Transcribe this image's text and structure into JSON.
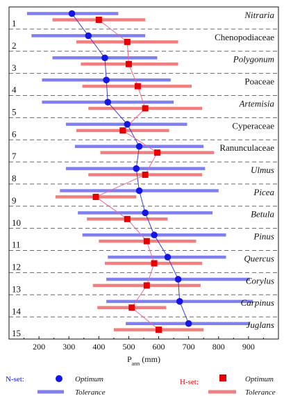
{
  "chart_data": {
    "type": "interval-dot",
    "xlabel_main": "P",
    "xlabel_sub": "ann",
    "xlabel_unit": " (mm)",
    "xlim": [
      100,
      1000
    ],
    "xticks": [
      200,
      300,
      400,
      500,
      600,
      700,
      800,
      900
    ],
    "rows": [
      {
        "num": "1",
        "taxon": "Nitraria",
        "italic": true,
        "n_opt": 310,
        "n_tol": [
          160,
          465
        ],
        "h_opt": 400,
        "h_tol": [
          245,
          555
        ]
      },
      {
        "num": "2",
        "taxon": "Chenopodiaceae",
        "italic": false,
        "n_opt": 365,
        "n_tol": [
          175,
          555
        ],
        "h_opt": 495,
        "h_tol": [
          325,
          665
        ]
      },
      {
        "num": "3",
        "taxon": "Polygonum",
        "italic": true,
        "n_opt": 420,
        "n_tol": [
          245,
          595
        ],
        "h_opt": 500,
        "h_tol": [
          340,
          665
        ]
      },
      {
        "num": "4",
        "taxon": "Poaceae",
        "italic": false,
        "n_opt": 425,
        "n_tol": [
          210,
          640
        ],
        "h_opt": 530,
        "h_tol": [
          345,
          710
        ]
      },
      {
        "num": "5",
        "taxon": "Artemisia",
        "italic": true,
        "n_opt": 430,
        "n_tol": [
          210,
          650
        ],
        "h_opt": 555,
        "h_tol": [
          365,
          745
        ]
      },
      {
        "num": "6",
        "taxon": "Cyperaceae",
        "italic": false,
        "n_opt": 495,
        "n_tol": [
          290,
          695
        ],
        "h_opt": 480,
        "h_tol": [
          325,
          635
        ]
      },
      {
        "num": "7",
        "taxon": "Ranunculaceae",
        "italic": false,
        "n_opt": 535,
        "n_tol": [
          320,
          750
        ],
        "h_opt": 595,
        "h_tol": [
          405,
          785
        ]
      },
      {
        "num": "8",
        "taxon": "Ulmus",
        "italic": true,
        "n_opt": 525,
        "n_tol": [
          290,
          755
        ],
        "h_opt": 555,
        "h_tol": [
          365,
          745
        ]
      },
      {
        "num": "9",
        "taxon": "Picea",
        "italic": true,
        "n_opt": 535,
        "n_tol": [
          270,
          800
        ],
        "h_opt": 390,
        "h_tol": [
          255,
          525
        ]
      },
      {
        "num": "10",
        "taxon": "Betula",
        "italic": true,
        "n_opt": 555,
        "n_tol": [
          330,
          780
        ],
        "h_opt": 495,
        "h_tol": [
          360,
          630
        ]
      },
      {
        "num": "11",
        "taxon": "Pinus",
        "italic": true,
        "n_opt": 585,
        "n_tol": [
          345,
          825
        ],
        "h_opt": 560,
        "h_tol": [
          400,
          725
        ]
      },
      {
        "num": "12",
        "taxon": "Quercus",
        "italic": true,
        "n_opt": 630,
        "n_tol": [
          430,
          825
        ],
        "h_opt": 585,
        "h_tol": [
          420,
          745
        ]
      },
      {
        "num": "13",
        "taxon": "Corylus",
        "italic": true,
        "n_opt": 665,
        "n_tol": [
          425,
          905
        ],
        "h_opt": 560,
        "h_tol": [
          380,
          740
        ]
      },
      {
        "num": "14",
        "taxon": "Carpinus",
        "italic": true,
        "n_opt": 670,
        "n_tol": [
          425,
          915
        ],
        "h_opt": 510,
        "h_tol": [
          395,
          625
        ]
      },
      {
        "num": "15",
        "taxon": "Juglans",
        "italic": true,
        "n_opt": 700,
        "n_tol": [
          490,
          905
        ],
        "h_opt": 600,
        "h_tol": [
          450,
          750
        ]
      }
    ],
    "colors": {
      "nset": "#1515e6",
      "nset_tol": "#7f7fef",
      "hset": "#e60000",
      "hset_tol": "#f08080",
      "nset_line": "#3b3bd6",
      "hset_line": "#f06a8a"
    }
  },
  "legend": {
    "nset_label": "N-set:",
    "hset_label": "H-set:",
    "optimum": "Optimum",
    "tolerance": "Tolerance"
  }
}
